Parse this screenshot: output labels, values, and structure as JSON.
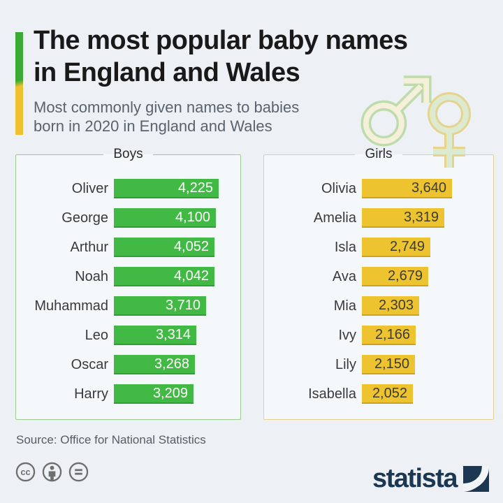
{
  "header": {
    "title_line1": "The most popular baby names",
    "title_line2": "in England and Wales",
    "subtitle_line1": "Most commonly given names to babies",
    "subtitle_line2": "born in 2020 in England and Wales"
  },
  "chart_data": {
    "type": "bar",
    "orientation": "horizontal",
    "title": "The most popular baby names in England and Wales",
    "subtitle": "Most commonly given names to babies born in 2020 in England and Wales",
    "value_axis_max": 4225,
    "grid": false,
    "legend_position": "panel-top-center",
    "panels": [
      {
        "label": "Boys",
        "bar_color": "#42b944",
        "bar_edge_color": "#2fa134",
        "value_text_color": "#ffffff",
        "panel_border_color": "#9ccc92",
        "rows": [
          {
            "name": "Oliver",
            "value": 4225,
            "value_label": "4,225"
          },
          {
            "name": "George",
            "value": 4100,
            "value_label": "4,100"
          },
          {
            "name": "Arthur",
            "value": 4052,
            "value_label": "4,052"
          },
          {
            "name": "Noah",
            "value": 4042,
            "value_label": "4,042"
          },
          {
            "name": "Muhammad",
            "value": 3710,
            "value_label": "3,710"
          },
          {
            "name": "Leo",
            "value": 3314,
            "value_label": "3,314"
          },
          {
            "name": "Oscar",
            "value": 3268,
            "value_label": "3,268"
          },
          {
            "name": "Harry",
            "value": 3209,
            "value_label": "3,209"
          }
        ]
      },
      {
        "label": "Girls",
        "bar_color": "#edc32f",
        "bar_edge_color": "#cda31c",
        "value_text_color": "#3c3c32",
        "panel_border_color": "#e3d193",
        "rows": [
          {
            "name": "Olivia",
            "value": 3640,
            "value_label": "3,640"
          },
          {
            "name": "Amelia",
            "value": 3319,
            "value_label": "3,319"
          },
          {
            "name": "Isla",
            "value": 2749,
            "value_label": "2,749"
          },
          {
            "name": "Ava",
            "value": 2679,
            "value_label": "2,679"
          },
          {
            "name": "Mia",
            "value": 2303,
            "value_label": "2,303"
          },
          {
            "name": "Ivy",
            "value": 2166,
            "value_label": "2,166"
          },
          {
            "name": "Lily",
            "value": 2150,
            "value_label": "2,150"
          },
          {
            "name": "Isabella",
            "value": 2052,
            "value_label": "2,052"
          }
        ]
      }
    ]
  },
  "footer": {
    "source": "Source: Office for National Statistics",
    "logo_text": "statista",
    "cc_icons": [
      "cc-icon",
      "attribution-icon",
      "equals-icon"
    ]
  },
  "colors": {
    "background": "#edf1f5",
    "accent_green": "#3aaa35",
    "accent_yellow": "#f0c12f",
    "logo_navy": "#1b3751"
  }
}
